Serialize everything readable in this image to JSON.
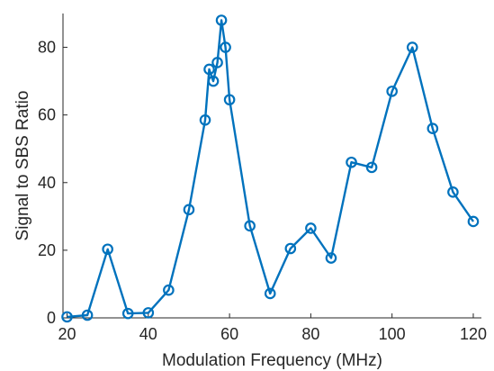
{
  "chart_data": {
    "type": "line",
    "title": "",
    "xlabel": "Modulation Frequency (MHz)",
    "ylabel": "Signal to SBS Ratio",
    "xlim": [
      19,
      122
    ],
    "ylim": [
      0,
      90
    ],
    "xticks": [
      20,
      40,
      60,
      80,
      100,
      120
    ],
    "yticks": [
      0,
      20,
      40,
      60,
      80
    ],
    "grid": false,
    "marker": "circle",
    "series": [
      {
        "color": "#0072BD",
        "x": [
          20,
          25,
          30,
          35,
          40,
          45,
          50,
          54,
          55,
          56,
          57,
          58,
          59,
          60,
          65,
          70,
          75,
          80,
          85,
          90,
          95,
          100,
          105,
          110,
          115,
          120
        ],
        "y": [
          0.3,
          0.8,
          20.3,
          1.3,
          1.5,
          8.2,
          32,
          58.5,
          73.5,
          70,
          75.5,
          88,
          80,
          64.5,
          27.2,
          7.2,
          20.5,
          26.5,
          17.7,
          46,
          44.5,
          67,
          80,
          56,
          37.2,
          28.5
        ]
      }
    ]
  }
}
